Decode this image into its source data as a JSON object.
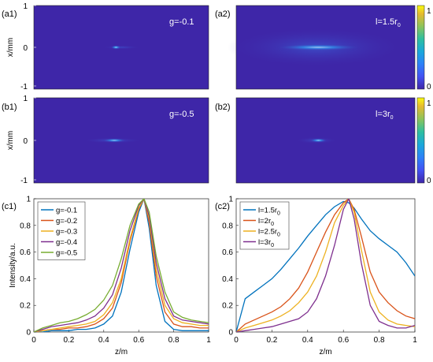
{
  "heatmaps": [
    {
      "label": "(a1)",
      "text": "g=-0.1",
      "ylabel": "x/mm",
      "yticks": [
        "1",
        "0",
        "-1"
      ],
      "spot": {
        "z": 0.47,
        "width": 0.06,
        "height": 0.012,
        "peak": 0.9
      },
      "glow": {
        "z": 0.5,
        "width": 0.22,
        "height": 0.006,
        "peak": 0.3
      }
    },
    {
      "label": "(a2)",
      "text": "l=1.5r",
      "text_sub": "0",
      "ylabel": "",
      "yticks": [],
      "spot": {
        "z": 0.46,
        "width": 0.5,
        "height": 0.02,
        "peak": 0.75
      },
      "glow": {
        "z": 0.45,
        "width": 1.0,
        "height": 0.06,
        "peak": 0.35
      }
    },
    {
      "label": "(b1)",
      "text": "g=-0.5",
      "ylabel": "x/mm",
      "yticks": [
        "1",
        "0",
        "-1"
      ],
      "spot": {
        "z": 0.46,
        "width": 0.14,
        "height": 0.012,
        "peak": 0.8
      },
      "glow": {
        "z": 0.45,
        "width": 0.35,
        "height": 0.008,
        "peak": 0.35
      }
    },
    {
      "label": "(b2)",
      "text": "l=3r",
      "text_sub": "0",
      "ylabel": "",
      "yticks": [],
      "spot": {
        "z": 0.46,
        "width": 0.1,
        "height": 0.012,
        "peak": 0.85
      },
      "glow": {
        "z": 0.45,
        "width": 0.24,
        "height": 0.01,
        "peak": 0.3
      }
    }
  ],
  "colorbar": {
    "ticks": [
      "1",
      "0"
    ]
  },
  "chart_data": [
    {
      "type": "line",
      "panel": "(c1)",
      "xlabel": "z/m",
      "ylabel": "Intensity/a.u.",
      "xlim": [
        0,
        1
      ],
      "ylim": [
        0,
        1
      ],
      "xticks": [
        "0",
        "0.2",
        "0.4",
        "0.6",
        "0.8",
        "1"
      ],
      "yticks": [
        "0",
        "0.2",
        "0.4",
        "0.6",
        "0.8",
        "1"
      ],
      "legend_position": "top-left",
      "x": [
        0,
        0.05,
        0.1,
        0.15,
        0.2,
        0.25,
        0.3,
        0.35,
        0.4,
        0.45,
        0.5,
        0.55,
        0.6,
        0.63,
        0.66,
        0.7,
        0.75,
        0.8,
        0.85,
        0.9,
        0.95,
        1
      ],
      "series": [
        {
          "name": "g=-0.1",
          "color": "#0072BD",
          "values": [
            0,
            0,
            0.01,
            0.01,
            0.01,
            0.02,
            0.02,
            0.03,
            0.06,
            0.12,
            0.3,
            0.62,
            0.9,
            1.0,
            0.78,
            0.35,
            0.08,
            0.02,
            0.01,
            0.01,
            0.01,
            0.01
          ]
        },
        {
          "name": "g=-0.2",
          "color": "#D95319",
          "values": [
            0,
            0.01,
            0.02,
            0.02,
            0.03,
            0.03,
            0.04,
            0.06,
            0.1,
            0.18,
            0.37,
            0.68,
            0.92,
            1.0,
            0.82,
            0.42,
            0.15,
            0.06,
            0.04,
            0.04,
            0.03,
            0.03
          ]
        },
        {
          "name": "g=-0.3",
          "color": "#EDB120",
          "values": [
            0,
            0.01,
            0.02,
            0.03,
            0.04,
            0.05,
            0.06,
            0.08,
            0.13,
            0.22,
            0.4,
            0.7,
            0.93,
            1.0,
            0.85,
            0.47,
            0.2,
            0.1,
            0.07,
            0.06,
            0.05,
            0.05
          ]
        },
        {
          "name": "g=-0.4",
          "color": "#7E2F8E",
          "values": [
            0,
            0.02,
            0.04,
            0.05,
            0.06,
            0.07,
            0.09,
            0.12,
            0.18,
            0.28,
            0.48,
            0.76,
            0.95,
            1.0,
            0.87,
            0.52,
            0.25,
            0.12,
            0.09,
            0.08,
            0.07,
            0.06
          ]
        },
        {
          "name": "g=-0.5",
          "color": "#77AC30",
          "values": [
            0,
            0.03,
            0.05,
            0.07,
            0.08,
            0.1,
            0.13,
            0.17,
            0.24,
            0.35,
            0.55,
            0.8,
            0.96,
            1.0,
            0.9,
            0.57,
            0.3,
            0.15,
            0.11,
            0.09,
            0.08,
            0.07
          ]
        }
      ]
    },
    {
      "type": "line",
      "panel": "(c2)",
      "xlabel": "z/m",
      "ylabel": "",
      "xlim": [
        0,
        1
      ],
      "ylim": [
        0,
        1
      ],
      "xticks": [
        "0",
        "0.2",
        "0.4",
        "0.6",
        "0.8",
        "1"
      ],
      "yticks": [
        "0",
        "0.2",
        "0.4",
        "0.6",
        "0.8",
        "1"
      ],
      "legend_position": "top-left",
      "x": [
        0,
        0.05,
        0.1,
        0.15,
        0.2,
        0.25,
        0.3,
        0.35,
        0.4,
        0.45,
        0.5,
        0.55,
        0.6,
        0.63,
        0.66,
        0.7,
        0.75,
        0.8,
        0.85,
        0.9,
        0.95,
        1
      ],
      "series": [
        {
          "name": "l=1.5r",
          "sub": "0",
          "color": "#0072BD",
          "values": [
            0,
            0.25,
            0.3,
            0.35,
            0.4,
            0.47,
            0.55,
            0.63,
            0.72,
            0.8,
            0.88,
            0.94,
            0.98,
            0.97,
            0.93,
            0.85,
            0.76,
            0.7,
            0.65,
            0.6,
            0.52,
            0.42
          ]
        },
        {
          "name": "l=2r",
          "sub": "0",
          "color": "#D95319",
          "values": [
            0,
            0.06,
            0.09,
            0.12,
            0.15,
            0.19,
            0.25,
            0.33,
            0.45,
            0.6,
            0.75,
            0.88,
            0.97,
            1.0,
            0.92,
            0.72,
            0.45,
            0.3,
            0.22,
            0.16,
            0.12,
            0.1
          ]
        },
        {
          "name": "l=2.5r",
          "sub": "0",
          "color": "#EDB120",
          "values": [
            0,
            0.03,
            0.05,
            0.07,
            0.09,
            0.12,
            0.16,
            0.22,
            0.3,
            0.42,
            0.6,
            0.82,
            0.95,
            1.0,
            0.9,
            0.62,
            0.3,
            0.15,
            0.09,
            0.06,
            0.05,
            0.04
          ]
        },
        {
          "name": "l=3r",
          "sub": "0",
          "color": "#7E2F8E",
          "values": [
            0,
            0.01,
            0.02,
            0.03,
            0.04,
            0.06,
            0.08,
            0.1,
            0.15,
            0.25,
            0.42,
            0.65,
            0.92,
            1.0,
            0.85,
            0.52,
            0.2,
            0.08,
            0.05,
            0.03,
            0.03,
            0.05
          ]
        }
      ]
    }
  ]
}
